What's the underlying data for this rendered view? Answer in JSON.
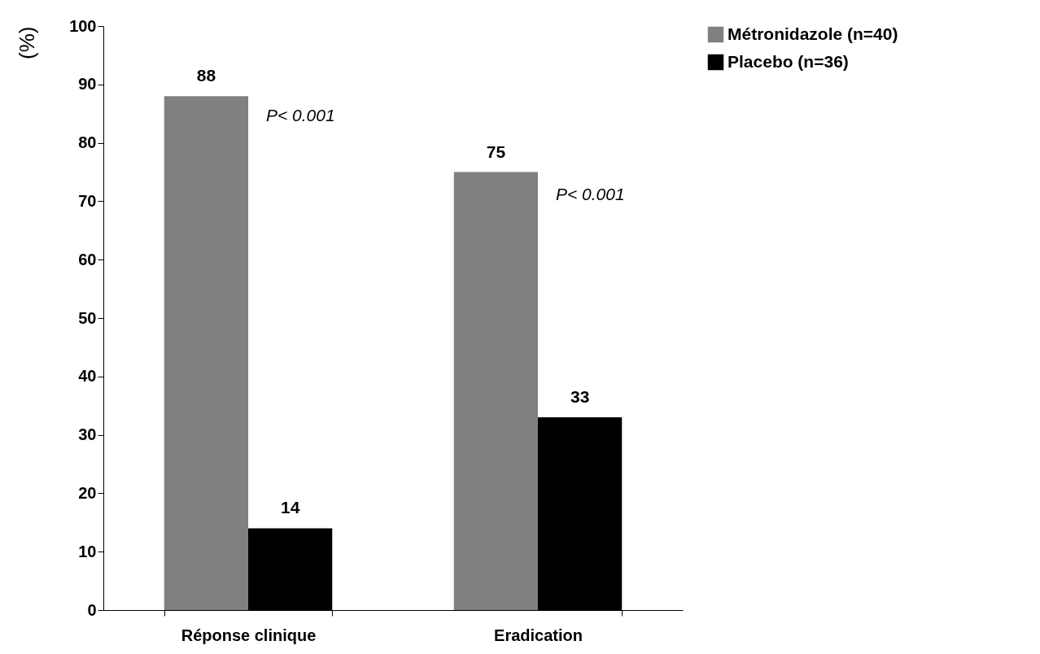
{
  "chart_data": {
    "type": "bar",
    "ylabel": "(%)",
    "categories": [
      "Réponse clinique",
      "Eradication"
    ],
    "series": [
      {
        "name": "Métronidazole (n=40)",
        "color": "#808080",
        "values": [
          88,
          75
        ]
      },
      {
        "name": "Placebo (n=36)",
        "color": "#000000",
        "values": [
          14,
          33
        ]
      }
    ],
    "ylim": [
      0,
      100
    ],
    "yticks": [
      0,
      10,
      20,
      30,
      40,
      50,
      60,
      70,
      80,
      90,
      100
    ],
    "data_labels": true,
    "legend": "right",
    "grid": false,
    "annotations": [
      {
        "text": "P< 0.001",
        "x": "Réponse clinique",
        "y": 84.5
      },
      {
        "text": "P< 0.001",
        "x": "Eradication",
        "y": 71
      }
    ]
  }
}
